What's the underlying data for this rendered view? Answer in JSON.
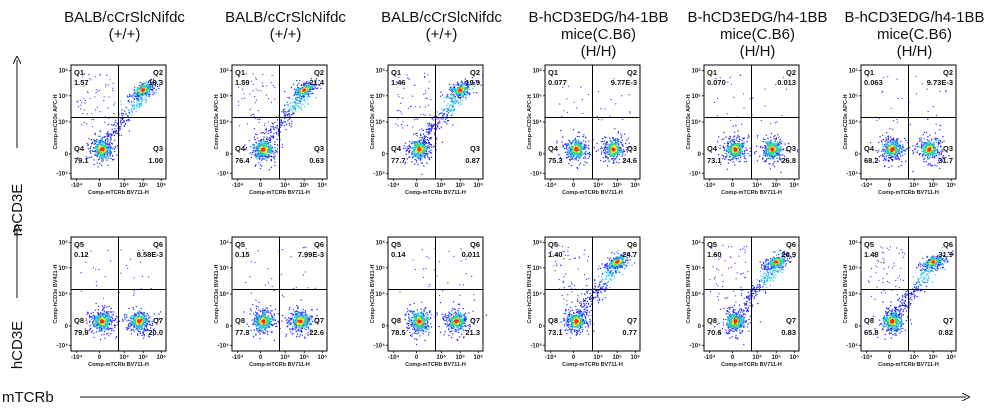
{
  "colors": {
    "low": "#2b2bff",
    "mid": "#27c9e8",
    "mid2": "#3ee06a",
    "hi": "#f6e61e",
    "peak": "#ff2a12"
  },
  "big_axes": {
    "row1": "mCD3E",
    "row2": "hCD3E",
    "x": "mTCRb"
  },
  "columns": [
    {
      "title": [
        "BALB/cCrSlcNifdc",
        "(+/+)"
      ]
    },
    {
      "title": [
        "BALB/cCrSlcNifdc",
        "(+/+)"
      ]
    },
    {
      "title": [
        "BALB/cCrSlcNifdc",
        "(+/+)"
      ]
    },
    {
      "title": [
        "B-hCD3EDG/h4-1BB",
        "mice(C.B6)",
        "(H/H)"
      ]
    },
    {
      "title": [
        "B-hCD3EDG/h4-1BB",
        "mice(C.B6)",
        "(H/H)"
      ]
    },
    {
      "title": [
        "B-hCD3EDG/h4-1BB",
        "mice(C.B6)",
        "(H/H)"
      ]
    }
  ],
  "chart_data": {
    "type": "scatter",
    "subtype": "flow-cytometry-density",
    "x_ticks": [
      "-10⁴",
      "0",
      "10⁴",
      "10⁵",
      "10⁶"
    ],
    "y_ticks": [
      "-10⁴",
      "0",
      "10⁴",
      "10⁵",
      "10⁶"
    ],
    "rows": [
      {
        "xlabel": "Comp-mTCRb BV711-H",
        "ylabel": "Comp-mCD3e APC-H",
        "quadrant_names": [
          "Q1",
          "Q2",
          "Q3",
          "Q4"
        ],
        "panels": [
          {
            "values": [
              "1.57",
              "18.3",
              "1.00",
              "79.1"
            ],
            "populations": [
              "dn",
              "dp"
            ]
          },
          {
            "values": [
              "1.59",
              "21.4",
              "0.63",
              "76.4"
            ],
            "populations": [
              "dn",
              "dp"
            ]
          },
          {
            "values": [
              "1.46",
              "19.9",
              "0.87",
              "77.7"
            ],
            "populations": [
              "dn",
              "dp"
            ]
          },
          {
            "values": [
              "0.077",
              "9.77E-3",
              "24.6",
              "75.3"
            ],
            "populations": [
              "dn",
              "xpos"
            ]
          },
          {
            "values": [
              "0.070",
              "0.013",
              "26.8",
              "73.1"
            ],
            "populations": [
              "dn",
              "xpos"
            ]
          },
          {
            "values": [
              "0.063",
              "9.73E-3",
              "31.7",
              "68.2"
            ],
            "populations": [
              "dn",
              "xpos"
            ]
          }
        ]
      },
      {
        "xlabel": "Comp-mTCRb BV711-H",
        "ylabel": "Comp-hCD3e BV421-H",
        "quadrant_names": [
          "Q5",
          "Q6",
          "Q7",
          "Q8"
        ],
        "panels": [
          {
            "values": [
              "0.12",
              "8.58E-3",
              "20.0",
              "79.9"
            ],
            "populations": [
              "dn",
              "xpos"
            ]
          },
          {
            "values": [
              "0.15",
              "7.99E-3",
              "22.6",
              "77.3"
            ],
            "populations": [
              "dn",
              "xpos"
            ]
          },
          {
            "values": [
              "0.14",
              "0.011",
              "21.3",
              "78.5"
            ],
            "populations": [
              "dn",
              "xpos"
            ]
          },
          {
            "values": [
              "1.40",
              "24.7",
              "0.77",
              "73.1"
            ],
            "populations": [
              "dn",
              "dp"
            ]
          },
          {
            "values": [
              "1.60",
              "26.9",
              "0.83",
              "70.6"
            ],
            "populations": [
              "dn",
              "dp"
            ]
          },
          {
            "values": [
              "1.48",
              "31.9",
              "0.82",
              "65.8"
            ],
            "populations": [
              "dn",
              "dp"
            ]
          }
        ]
      }
    ]
  }
}
